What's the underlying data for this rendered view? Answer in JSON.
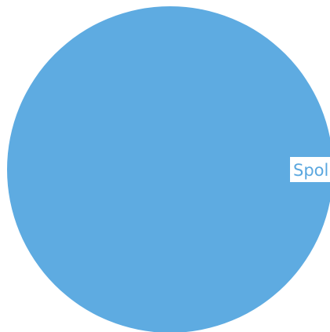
{
  "chart_data": {
    "type": "pie",
    "slices": [
      {
        "label": "Spol",
        "value": 100,
        "color": "#5eabe1"
      }
    ],
    "label_color": "#5aa7df"
  }
}
